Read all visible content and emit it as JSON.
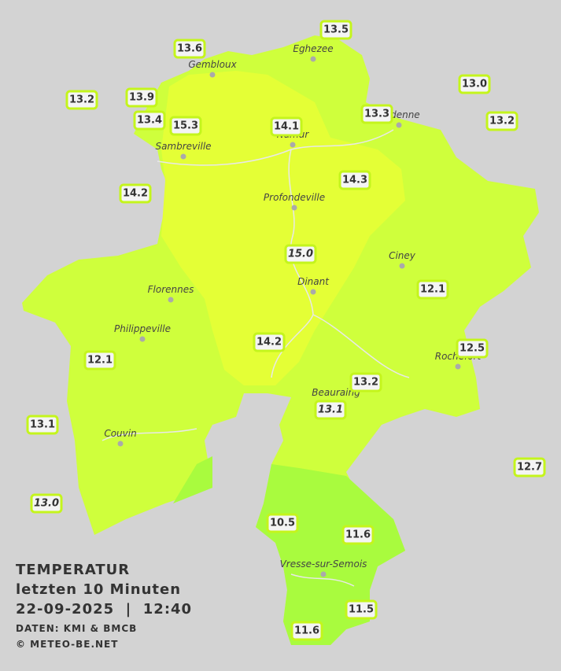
{
  "title": {
    "line1": "TEMPERATUR",
    "line2": "letzten 10 Minuten",
    "line3": "22-09-2025  |  12:40",
    "source": "DATEN: KMI & BMCB",
    "copyright": "© METEO-BE.NET"
  },
  "stations": [
    "13.5",
    "13.6",
    "13.0",
    "13.2",
    "13.9",
    "13.3",
    "13.4",
    "15.3",
    "14.1",
    "13.2",
    "14.3",
    "14.2",
    "15.0",
    "12.1",
    "14.2",
    "12.5",
    "12.1",
    "13.2",
    "13.1",
    "13.1",
    "12.7",
    "13.0",
    "10.5",
    "11.6",
    "11.5",
    "11.6"
  ],
  "cities": [
    "Eghezee",
    "Gembloux",
    "Andenne",
    "Namur",
    "Sambreville",
    "Profondeville",
    "Ciney",
    "Dinant",
    "Florennes",
    "Philippeville",
    "Rochefort",
    "Beauraing",
    "Couvin",
    "Vresse-sur-Semois"
  ]
}
